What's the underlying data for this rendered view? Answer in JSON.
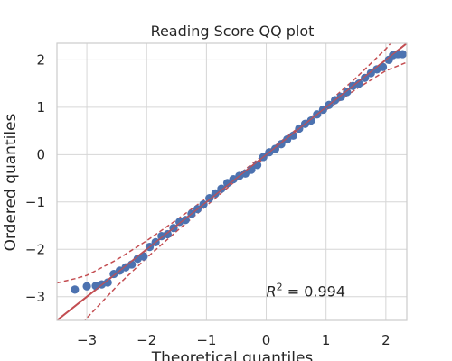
{
  "chart_data": {
    "type": "scatter",
    "title": "Reading Score QQ plot",
    "xlabel": "Theoretical quantiles",
    "ylabel": "Ordered quantiles",
    "xlim": [
      -3.5,
      2.35
    ],
    "ylim": [
      -3.5,
      2.35
    ],
    "x_ticks": [
      -3,
      -2,
      -1,
      0,
      1,
      2
    ],
    "y_ticks": [
      -3,
      -2,
      -1,
      0,
      1,
      2
    ],
    "x_tick_labels": [
      "−3",
      "−2",
      "−1",
      "0",
      "1",
      "2"
    ],
    "y_tick_labels": [
      "−3",
      "−2",
      "−1",
      "0",
      "1",
      "2"
    ],
    "grid": true,
    "annotation": {
      "text_prefix": "R",
      "superscript": "2",
      "text_suffix": " = 0.994",
      "x": 0,
      "y": -2.9
    },
    "reference_line": {
      "slope": 1.0,
      "intercept": 0.0
    },
    "identity_line": {
      "slope": 1.0,
      "intercept": 0.0
    },
    "confidence_band": {
      "x": [
        -3.5,
        -3.2,
        -3.0,
        -2.5,
        -2.0,
        -1.5,
        -1.0,
        -0.5,
        0.0,
        0.5,
        1.0,
        1.5,
        2.0,
        2.35
      ],
      "upper": [
        -2.71,
        -2.62,
        -2.55,
        -2.22,
        -1.82,
        -1.38,
        -0.92,
        -0.46,
        0.04,
        0.53,
        1.06,
        1.62,
        2.23,
        2.75
      ],
      "lower": [
        -4.29,
        -3.78,
        -3.45,
        -2.78,
        -2.18,
        -1.62,
        -1.08,
        -0.54,
        -0.04,
        0.47,
        0.94,
        1.38,
        1.77,
        1.95
      ]
    },
    "series": [
      {
        "points": [
          [
            -3.2,
            -2.85
          ],
          [
            -3.0,
            -2.78
          ],
          [
            -2.85,
            -2.77
          ],
          [
            -2.75,
            -2.74
          ],
          [
            -2.65,
            -2.7
          ],
          [
            -2.55,
            -2.52
          ],
          [
            -2.45,
            -2.45
          ],
          [
            -2.35,
            -2.38
          ],
          [
            -2.25,
            -2.32
          ],
          [
            -2.15,
            -2.2
          ],
          [
            -2.05,
            -2.15
          ],
          [
            -1.95,
            -1.95
          ],
          [
            -1.85,
            -1.85
          ],
          [
            -1.75,
            -1.72
          ],
          [
            -1.65,
            -1.68
          ],
          [
            -1.55,
            -1.55
          ],
          [
            -1.45,
            -1.42
          ],
          [
            -1.35,
            -1.38
          ],
          [
            -1.25,
            -1.25
          ],
          [
            -1.15,
            -1.15
          ],
          [
            -1.05,
            -1.05
          ],
          [
            -0.95,
            -0.92
          ],
          [
            -0.85,
            -0.82
          ],
          [
            -0.75,
            -0.72
          ],
          [
            -0.65,
            -0.6
          ],
          [
            -0.55,
            -0.52
          ],
          [
            -0.45,
            -0.45
          ],
          [
            -0.35,
            -0.4
          ],
          [
            -0.25,
            -0.32
          ],
          [
            -0.15,
            -0.22
          ],
          [
            -0.05,
            -0.05
          ],
          [
            0.05,
            0.05
          ],
          [
            0.15,
            0.12
          ],
          [
            0.25,
            0.22
          ],
          [
            0.35,
            0.32
          ],
          [
            0.45,
            0.4
          ],
          [
            0.55,
            0.55
          ],
          [
            0.65,
            0.65
          ],
          [
            0.75,
            0.72
          ],
          [
            0.85,
            0.85
          ],
          [
            0.95,
            0.95
          ],
          [
            1.05,
            1.05
          ],
          [
            1.15,
            1.15
          ],
          [
            1.25,
            1.22
          ],
          [
            1.35,
            1.32
          ],
          [
            1.45,
            1.45
          ],
          [
            1.55,
            1.5
          ],
          [
            1.65,
            1.62
          ],
          [
            1.75,
            1.72
          ],
          [
            1.85,
            1.8
          ],
          [
            1.95,
            1.85
          ],
          [
            2.05,
            2.0
          ],
          [
            2.12,
            2.1
          ],
          [
            2.2,
            2.12
          ],
          [
            2.28,
            2.12
          ]
        ]
      }
    ],
    "colors": {
      "points": "#4c72b0",
      "reference_line": "#c44e52",
      "identity_line": "#6b7a8f",
      "band": "#c44e52",
      "grid": "#d6d6d6",
      "spine": "#cccccc",
      "text": "#262626"
    }
  }
}
